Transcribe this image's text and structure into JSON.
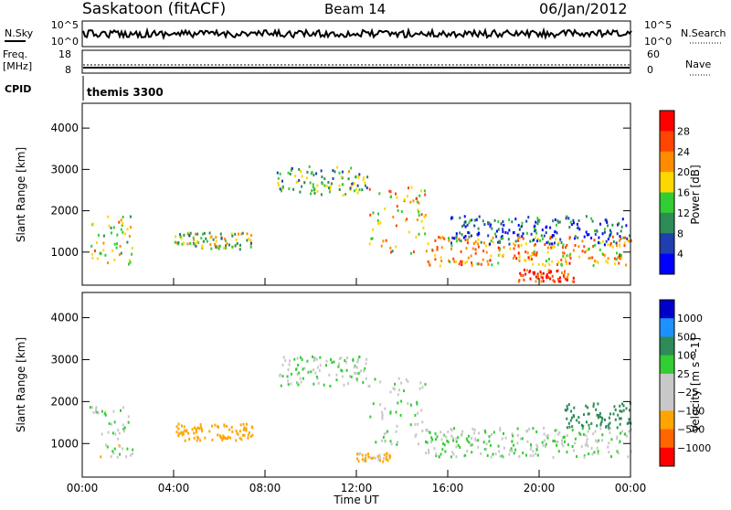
{
  "header": {
    "station": "Saskatoon (fitACF)",
    "beam": "Beam 14",
    "date": "06/Jan/2012"
  },
  "nsky": {
    "label": "N.Sky",
    "right_label": "N.Search",
    "ticks": [
      "10^5",
      "10^0"
    ],
    "right_ticks": [
      "10^5",
      "10^0"
    ]
  },
  "freq": {
    "label_line1": "Freq.",
    "label_line2": "[MHz]",
    "right_label": "Nave",
    "ticks": [
      "18",
      "8"
    ],
    "right_ticks": [
      "60",
      "0"
    ]
  },
  "cpid": {
    "label": "CPID",
    "value": "themis 3300"
  },
  "colors": {
    "power": [
      "#0000ff",
      "#1f3fae",
      "#2e8b57",
      "#32cd32",
      "#ffd700",
      "#ff8c00",
      "#ff4500",
      "#ff0000"
    ],
    "velocity": [
      "#ff0000",
      "#ff6600",
      "#ffa500",
      "#c8c8c8",
      "#c8c8c8",
      "#32cd32",
      "#2e8b57",
      "#1e90ff",
      "#0000cd"
    ]
  },
  "chart_data": [
    {
      "type": "heatmap",
      "name": "power",
      "xlabel": "Time UT",
      "ylabel": "Slant Range [km]",
      "colorbar_label": "Power [dB]",
      "colorbar_ticks": [
        "28",
        "24",
        "20",
        "16",
        "12",
        "8",
        "4"
      ],
      "x_ticks": [
        "00:00",
        "04:00",
        "08:00",
        "12:00",
        "16:00",
        "20:00",
        "00:00"
      ],
      "y_ticks": [
        "4000",
        "3000",
        "2000",
        "1000"
      ],
      "xlim": [
        0,
        24
      ],
      "ylim": [
        200,
        4600
      ],
      "bands": [
        {
          "t": [
            0.3,
            2.2
          ],
          "r": [
            700,
            1900
          ],
          "p": 16
        },
        {
          "t": [
            4.0,
            7.5
          ],
          "r": [
            1100,
            1500
          ],
          "p": 14
        },
        {
          "t": [
            8.5,
            12.5
          ],
          "r": [
            2400,
            3100
          ],
          "p": 12
        },
        {
          "t": [
            12.5,
            15.0
          ],
          "r": [
            1000,
            2600
          ],
          "p": 18
        },
        {
          "t": [
            15.0,
            24.0
          ],
          "r": [
            700,
            1400
          ],
          "p": 20
        },
        {
          "t": [
            16.0,
            24.0
          ],
          "r": [
            1200,
            1900
          ],
          "p": 6
        },
        {
          "t": [
            19.0,
            21.5
          ],
          "r": [
            300,
            600
          ],
          "p": 26
        }
      ]
    },
    {
      "type": "heatmap",
      "name": "velocity",
      "xlabel": "Time UT",
      "ylabel": "Slant Range [km]",
      "colorbar_label": "Velocity [m s^-1]",
      "colorbar_ticks": [
        "1000",
        "500",
        "100",
        "25",
        "−25",
        "−100",
        "−500",
        "−1000"
      ],
      "x_ticks": [
        "00:00",
        "04:00",
        "08:00",
        "12:00",
        "16:00",
        "20:00",
        "00:00"
      ],
      "y_ticks": [
        "4000",
        "3000",
        "2000",
        "1000"
      ],
      "xlim": [
        0,
        24
      ],
      "ylim": [
        200,
        4600
      ],
      "bands": [
        {
          "t": [
            0.3,
            2.2
          ],
          "r": [
            700,
            1900
          ],
          "v": -10
        },
        {
          "t": [
            4.0,
            7.5
          ],
          "r": [
            1100,
            1500
          ],
          "v": -200
        },
        {
          "t": [
            8.5,
            12.5
          ],
          "r": [
            2400,
            3100
          ],
          "v": 0
        },
        {
          "t": [
            12.5,
            15.0
          ],
          "r": [
            1000,
            2600
          ],
          "v": 0
        },
        {
          "t": [
            15.0,
            24.0
          ],
          "r": [
            700,
            1400
          ],
          "v": 0
        },
        {
          "t": [
            12.0,
            13.5
          ],
          "r": [
            600,
            800
          ],
          "v": -150
        },
        {
          "t": [
            21.0,
            24.0
          ],
          "r": [
            1400,
            2000
          ],
          "v": 400
        }
      ]
    }
  ]
}
